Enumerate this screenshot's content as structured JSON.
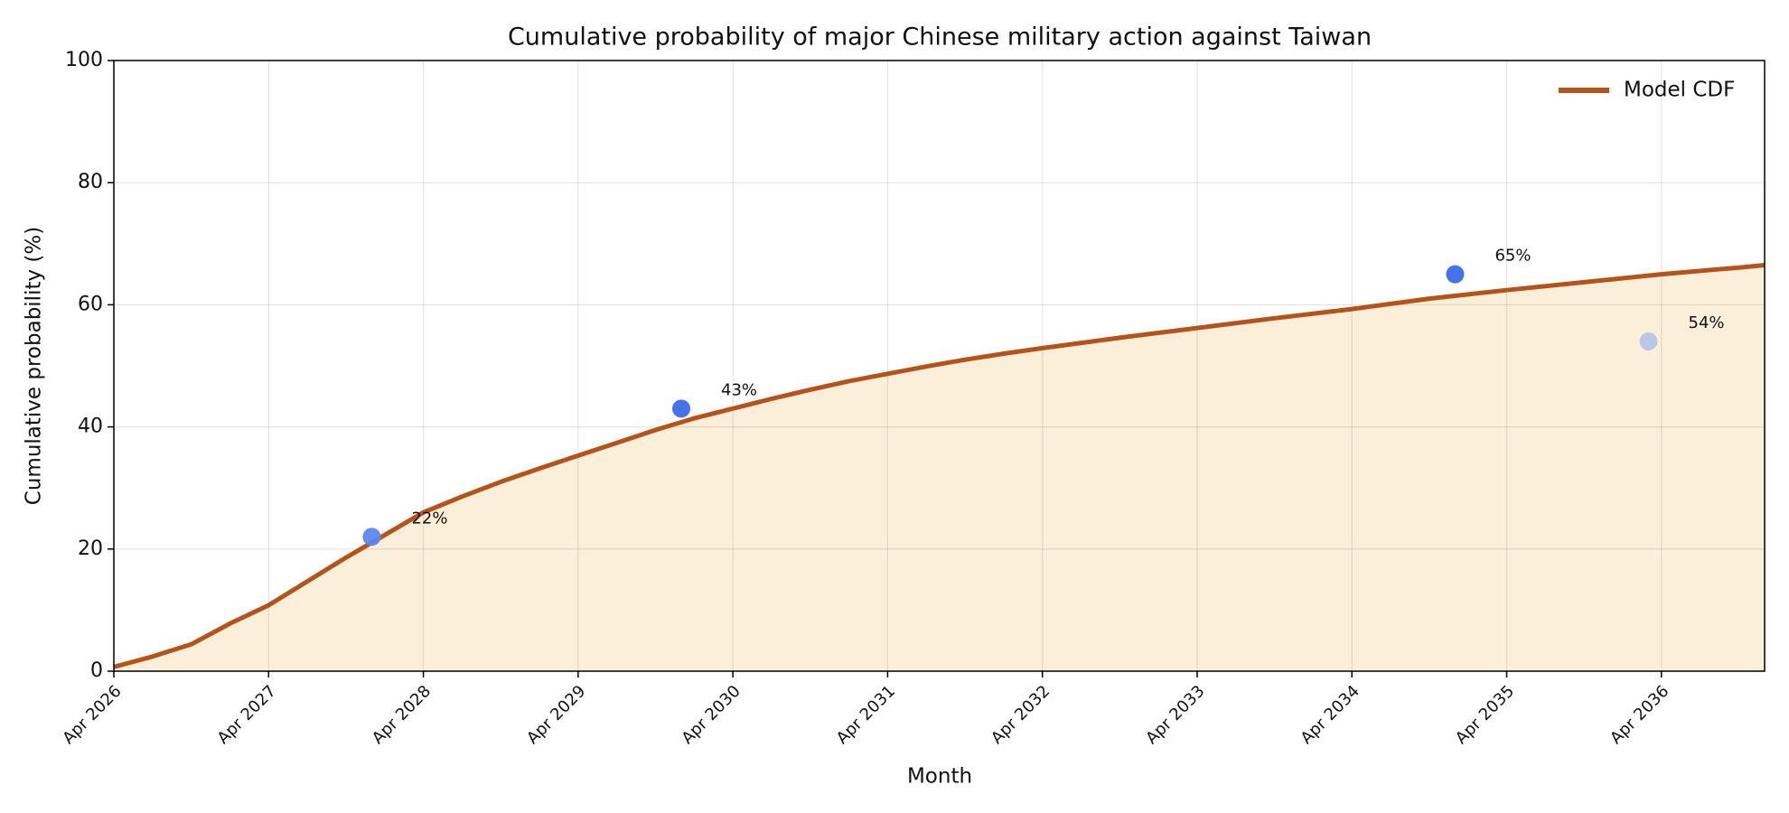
{
  "chart_data": {
    "type": "line",
    "title": "Cumulative probability of major Chinese military action against Taiwan",
    "xlabel": "Month",
    "ylabel": "Cumulative probability (%)",
    "x": [
      "2026-04",
      "2026-07",
      "2026-10",
      "2027-01",
      "2027-04",
      "2027-07",
      "2027-10",
      "2028-01",
      "2028-04",
      "2028-07",
      "2028-10",
      "2029-01",
      "2029-04",
      "2029-07",
      "2029-10",
      "2030-01",
      "2030-04",
      "2030-07",
      "2030-10",
      "2031-01",
      "2031-04",
      "2031-07",
      "2031-10",
      "2032-01",
      "2032-04",
      "2032-10",
      "2033-04",
      "2033-10",
      "2034-04",
      "2034-10",
      "2035-04",
      "2035-10",
      "2036-04",
      "2036-10",
      "2036-12"
    ],
    "series": [
      {
        "name": "Model CDF",
        "color": "#b5541a",
        "values": [
          0.7,
          2.4,
          4.4,
          7.8,
          10.8,
          14.7,
          18.6,
          22.3,
          26.0,
          28.6,
          31.0,
          33.2,
          35.3,
          37.4,
          39.5,
          41.4,
          43.0,
          44.6,
          46.1,
          47.5,
          48.7,
          49.9,
          51.0,
          52.0,
          52.9,
          54.6,
          56.2,
          57.8,
          59.3,
          61.0,
          62.4,
          63.7,
          65.0,
          66.1,
          66.5
        ]
      }
    ],
    "fill_color": "#fcefd9",
    "points": {
      "x": [
        "2027-12",
        "2029-12",
        "2034-12",
        "2036-03"
      ],
      "values": [
        22,
        43,
        65,
        54
      ],
      "value_labels": [
        "22%",
        "43%",
        "65%",
        "54%"
      ],
      "colors": [
        "#5b87ee",
        "#3b6ce8",
        "#3b6ce8",
        "#b6c4e8"
      ],
      "label_color": "#2a62e0"
    },
    "xlim": [
      "2026-04",
      "2036-12"
    ],
    "xticks": [
      {
        "value": "2026-04",
        "label": "Apr 2026"
      },
      {
        "value": "2027-04",
        "label": "Apr 2027"
      },
      {
        "value": "2028-04",
        "label": "Apr 2028"
      },
      {
        "value": "2029-04",
        "label": "Apr 2029"
      },
      {
        "value": "2030-04",
        "label": "Apr 2030"
      },
      {
        "value": "2031-04",
        "label": "Apr 2031"
      },
      {
        "value": "2032-04",
        "label": "Apr 2032"
      },
      {
        "value": "2033-04",
        "label": "Apr 2033"
      },
      {
        "value": "2034-04",
        "label": "Apr 2034"
      },
      {
        "value": "2035-04",
        "label": "Apr 2035"
      },
      {
        "value": "2036-04",
        "label": "Apr 2036"
      }
    ],
    "ylim": [
      0,
      100
    ],
    "yticks": [
      0,
      20,
      40,
      60,
      80,
      100
    ],
    "grid": true,
    "legend": "upper right"
  }
}
